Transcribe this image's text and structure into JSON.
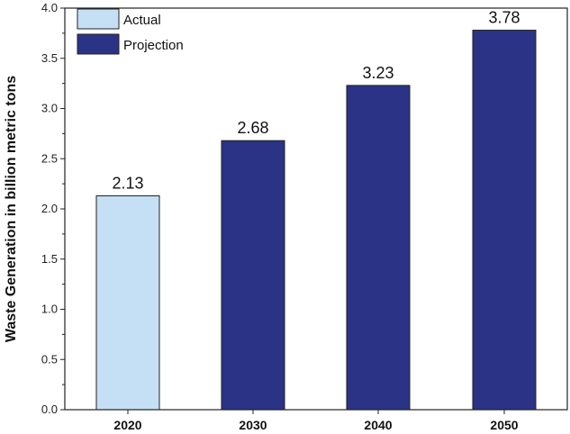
{
  "chart_data": {
    "type": "bar",
    "categories": [
      "2020",
      "2030",
      "2040",
      "2050"
    ],
    "values": [
      2.13,
      2.68,
      3.23,
      3.78
    ],
    "value_labels": [
      "2.13",
      "2.68",
      "3.23",
      "3.78"
    ],
    "bar_series": [
      "Actual",
      "Projection",
      "Projection",
      "Projection"
    ],
    "series": [
      {
        "name": "Actual",
        "color": "#c5dff5"
      },
      {
        "name": "Projection",
        "color": "#2b3386"
      }
    ],
    "title": "",
    "xlabel": "",
    "ylabel": "Waste Generation in billion metric tons",
    "ylim": [
      0,
      4.0
    ],
    "yticks": [
      "0.0",
      "0.5",
      "1.0",
      "1.5",
      "2.0",
      "2.5",
      "3.0",
      "3.5",
      "4.0"
    ],
    "grid": false,
    "legend_position": "top-left"
  }
}
